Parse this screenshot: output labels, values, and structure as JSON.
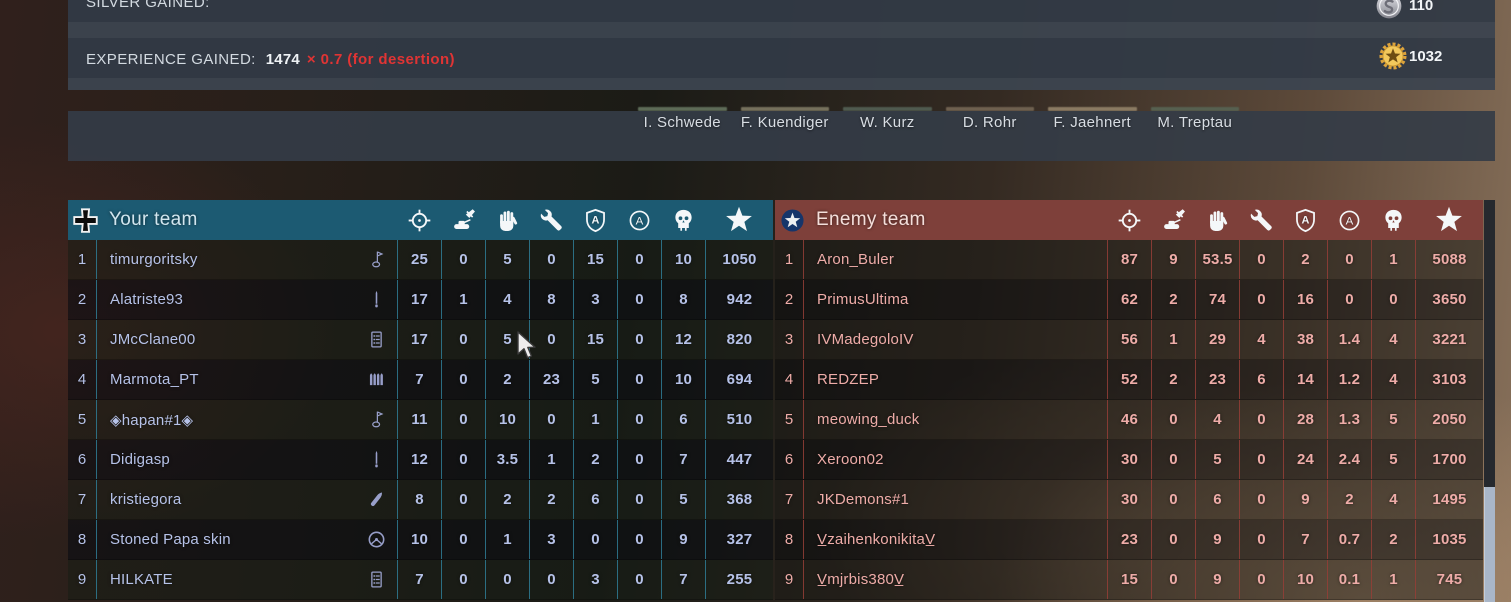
{
  "summary": {
    "silver_label": "SILVER GAINED:",
    "silver_value": "110",
    "silver_coin_icon": "silver-coin-icon",
    "xp_label": "EXPERIENCE GAINED:",
    "xp_base": "1474",
    "xp_modifier": "× 0.7 (for desertion)",
    "xp_value": "1032",
    "xp_coin_icon": "gold-coin-icon"
  },
  "squad_names": [
    "I. Schwede",
    "F. Kuendiger",
    "W. Kurz",
    "D. Rohr",
    "F. Jaehnert",
    "M. Treptau"
  ],
  "stat_icons": [
    "crosshair-icon",
    "vehicle-kill-icon",
    "capture-hand-icon",
    "repair-wrench-icon",
    "shield-assist-icon",
    "assist-icon",
    "deaths-skull-icon",
    "score-star-icon"
  ],
  "colors": {
    "your_team_accent": "#1c5a72",
    "enemy_team_accent": "#7e403a",
    "your_team_text": "#b6c2e8",
    "enemy_team_text": "#eeaca8",
    "xp_penalty_red": "#e03434"
  },
  "your_team": {
    "title": "Your team",
    "emblem": "german-cross-icon",
    "rows": [
      {
        "rank": "1",
        "name": "timurgoritsky",
        "class_icon": "recon-flag-icon",
        "stats": [
          "25",
          "0",
          "5",
          "0",
          "15",
          "0",
          "10",
          "1050"
        ]
      },
      {
        "rank": "2",
        "name": "Alatriste93",
        "class_icon": "rifle-icon",
        "stats": [
          "17",
          "1",
          "4",
          "8",
          "3",
          "0",
          "8",
          "942"
        ]
      },
      {
        "rank": "3",
        "name": "JMcClane00",
        "class_icon": "roster-icon",
        "stats": [
          "17",
          "0",
          "5",
          "0",
          "15",
          "0",
          "12",
          "820"
        ]
      },
      {
        "rank": "4",
        "name": "Marmota_PT",
        "class_icon": "ammo-icon",
        "stats": [
          "7",
          "0",
          "2",
          "23",
          "5",
          "0",
          "10",
          "694"
        ]
      },
      {
        "rank": "5",
        "name": "◈hapan#1◈",
        "class_icon": "recon-flag-icon",
        "stats": [
          "11",
          "0",
          "10",
          "0",
          "1",
          "0",
          "6",
          "510"
        ]
      },
      {
        "rank": "6",
        "name": "Didigasp",
        "class_icon": "rifle-icon",
        "stats": [
          "12",
          "0",
          "3.5",
          "1",
          "2",
          "0",
          "7",
          "447"
        ]
      },
      {
        "rank": "7",
        "name": "kristiegora",
        "class_icon": "shell-icon",
        "stats": [
          "8",
          "0",
          "2",
          "2",
          "6",
          "0",
          "5",
          "368"
        ]
      },
      {
        "rank": "8",
        "name": "Stoned Papa skin",
        "class_icon": "steering-wheel-icon",
        "stats": [
          "10",
          "0",
          "1",
          "3",
          "0",
          "0",
          "9",
          "327"
        ]
      },
      {
        "rank": "9",
        "name": "HILKATE",
        "class_icon": "roster-icon",
        "stats": [
          "7",
          "0",
          "0",
          "0",
          "3",
          "0",
          "7",
          "255"
        ]
      }
    ]
  },
  "enemy_team": {
    "title": "Enemy team",
    "emblem": "us-star-icon",
    "rows": [
      {
        "rank": "1",
        "name": "Aron_Buler",
        "class_icon": "",
        "stats": [
          "87",
          "9",
          "53.5",
          "0",
          "2",
          "0",
          "1",
          "5088"
        ]
      },
      {
        "rank": "2",
        "name": "PrimusUltima",
        "class_icon": "",
        "stats": [
          "62",
          "2",
          "74",
          "0",
          "16",
          "0",
          "0",
          "3650"
        ]
      },
      {
        "rank": "3",
        "name": "IVMadegoloIV",
        "class_icon": "",
        "stats": [
          "56",
          "1",
          "29",
          "4",
          "38",
          "1.4",
          "4",
          "3221"
        ]
      },
      {
        "rank": "4",
        "name": "REDZEP",
        "class_icon": "",
        "stats": [
          "52",
          "2",
          "23",
          "6",
          "14",
          "1.2",
          "4",
          "3103"
        ]
      },
      {
        "rank": "5",
        "name": "meowing_duck",
        "class_icon": "",
        "stats": [
          "46",
          "0",
          "4",
          "0",
          "28",
          "1.3",
          "5",
          "2050"
        ]
      },
      {
        "rank": "6",
        "name": "Xeroon02",
        "class_icon": "",
        "stats": [
          "30",
          "0",
          "5",
          "0",
          "24",
          "2.4",
          "5",
          "1700"
        ]
      },
      {
        "rank": "7",
        "name": "JKDemons#1",
        "class_icon": "",
        "stats": [
          "30",
          "0",
          "6",
          "0",
          "9",
          "2",
          "4",
          "1495"
        ]
      },
      {
        "rank": "8",
        "name": "V̲zaihenkonikitaV̲",
        "class_icon": "",
        "stats": [
          "23",
          "0",
          "9",
          "0",
          "7",
          "0.7",
          "2",
          "1035"
        ]
      },
      {
        "rank": "9",
        "name": "V̲mjrbis380V̲",
        "class_icon": "",
        "stats": [
          "15",
          "0",
          "9",
          "0",
          "10",
          "0.1",
          "1",
          "745"
        ]
      }
    ]
  }
}
